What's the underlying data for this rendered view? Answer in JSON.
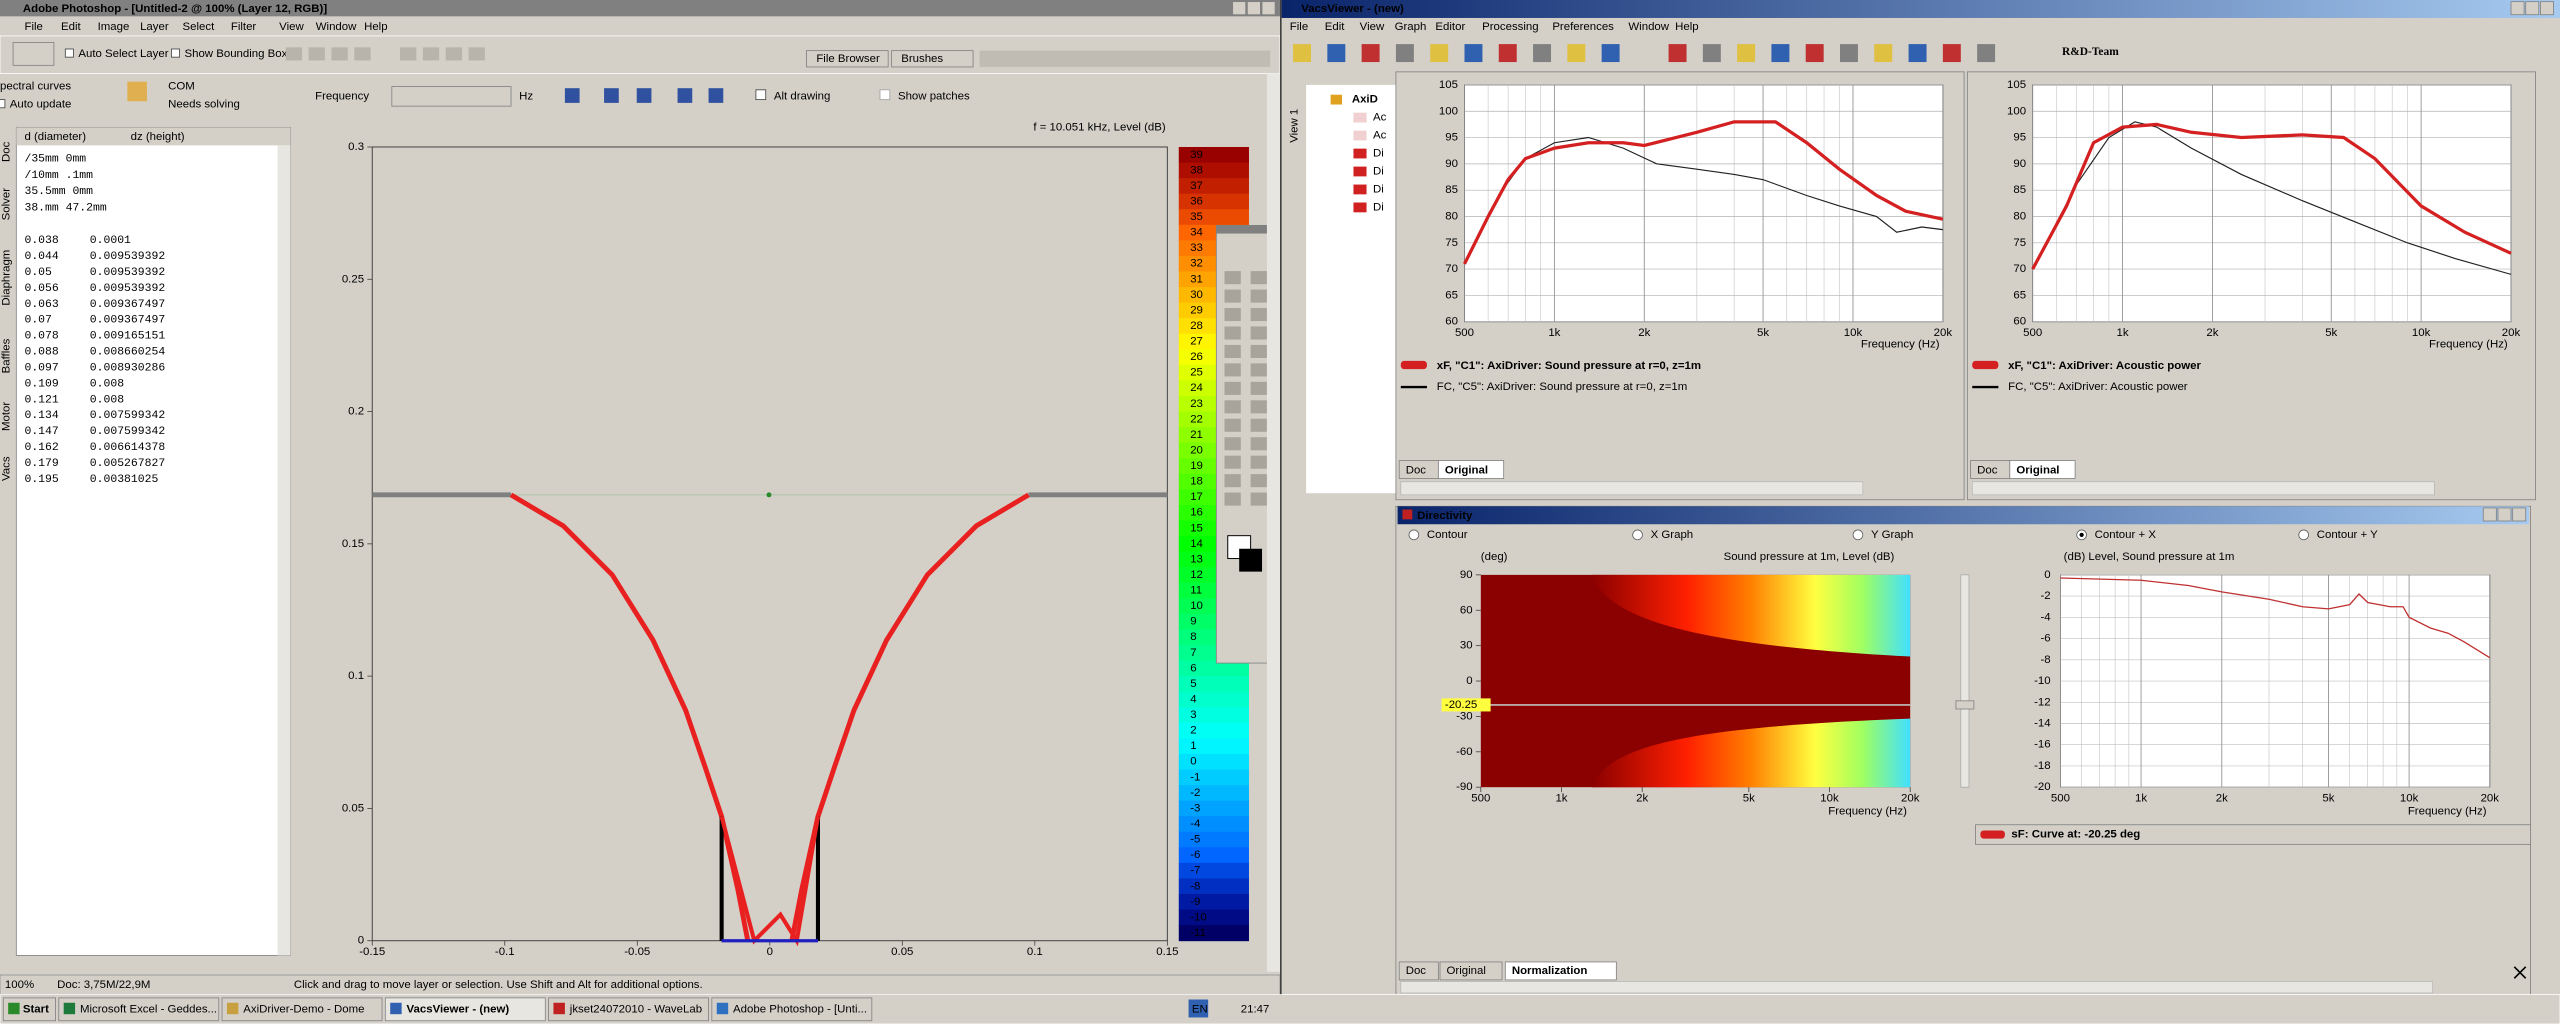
{
  "photoshop": {
    "title": "Adobe Photoshop - [Untitled-2 @ 100% (Layer 12, RGB)]",
    "menu": [
      "File",
      "Edit",
      "Image",
      "Layer",
      "Select",
      "Filter",
      "View",
      "Window",
      "Help"
    ],
    "options": [
      "Auto Select Layer",
      "Show Bounding Box"
    ],
    "tabs": [
      "File Browser",
      "Brushes"
    ],
    "status": {
      "zoom": "100%",
      "doc": "Doc: 3,75M/22,9M",
      "hint": "Click and drag to move layer or selection. Use Shift and Alt for additional options."
    }
  },
  "axidriver": {
    "toolbar": {
      "spectral": "pectral curves",
      "auto": "Auto update",
      "com": "COM",
      "needs": "Needs solving",
      "frequency": "Frequency",
      "hz": "Hz",
      "alt": "Alt drawing",
      "patches": "Show patches"
    },
    "side_tabs": [
      "Doc",
      "Solver",
      "Diaphragm",
      "Baffles",
      "Motor",
      "Vacs"
    ],
    "table_header": [
      "d (diameter)",
      "dz (height)"
    ],
    "dims": [
      "/35mm 0mm",
      "/10mm .1mm",
      "35.5mm 0mm",
      "38.mm 47.2mm"
    ],
    "rows": [
      [
        "0.038",
        "0.0001"
      ],
      [
        "0.044",
        "0.009539392"
      ],
      [
        "0.05",
        "0.009539392"
      ],
      [
        "0.056",
        "0.009539392"
      ],
      [
        "0.063",
        "0.009367497"
      ],
      [
        "0.07",
        "0.009367497"
      ],
      [
        "0.078",
        "0.009165151"
      ],
      [
        "0.088",
        "0.008660254"
      ],
      [
        "0.097",
        "0.008930286"
      ],
      [
        "0.109",
        "0.008"
      ],
      [
        "0.121",
        "0.008"
      ],
      [
        "0.134",
        "0.007599342"
      ],
      [
        "0.147",
        "0.007599342"
      ],
      [
        "0.162",
        "0.006614378"
      ],
      [
        "0.179",
        "0.005267827"
      ],
      [
        "0.195",
        "0.00381025"
      ]
    ],
    "plot": {
      "caption": "f = 10.051 kHz, Level  (dB)",
      "xlim": [
        -0.15,
        0.15
      ],
      "ylim": [
        0,
        0.3
      ],
      "xticks": [
        -0.15,
        -0.1,
        -0.05,
        0,
        0.05,
        0.1,
        0.15
      ],
      "yticks": [
        0,
        0.05,
        0.1,
        0.15,
        0.2,
        0.25,
        0.3
      ],
      "scale": [
        39,
        38,
        37,
        36,
        35,
        34,
        33,
        32,
        31,
        30,
        29,
        28,
        27,
        26,
        25,
        24,
        23,
        22,
        21,
        20,
        19,
        18,
        17,
        16,
        15,
        14,
        13,
        12,
        11,
        10,
        9,
        8,
        7,
        6,
        5,
        4,
        3,
        2,
        1,
        0,
        -1,
        -2,
        -3,
        -4,
        -5,
        -6,
        -7,
        -8,
        -9,
        -10,
        -11
      ]
    }
  },
  "vacs": {
    "title": "VacsViewer - (new)",
    "menu": [
      "File",
      "Edit",
      "View",
      "Graph",
      "Editor",
      "Processing",
      "Preferences",
      "Window",
      "Help"
    ],
    "brand": "R&D-Team",
    "view_tab": "View 1",
    "tree": {
      "root": "AxiD",
      "items": [
        "Ac",
        "Ac",
        "Di",
        "Di",
        "Di",
        "Di"
      ]
    },
    "graphs": [
      {
        "xlim": [
          500,
          20000
        ],
        "ylim": [
          60,
          105
        ],
        "xticks": [
          {
            "value": 500,
            "label": "500"
          },
          {
            "value": 1000,
            "label": "1k"
          },
          {
            "value": 2000,
            "label": "2k"
          },
          {
            "value": 5000,
            "label": "5k"
          },
          {
            "value": 10000,
            "label": "10k"
          },
          {
            "value": 20000,
            "label": "20k"
          }
        ],
        "yticks": [
          60,
          65,
          70,
          75,
          80,
          85,
          90,
          95,
          100,
          105
        ],
        "xlabel": "Frequency  (Hz)",
        "legend": [
          "xF, \"C1\": AxiDriver: Sound pressure at r=0, z=1m",
          "FC, \"C5\": AxiDriver: Sound pressure at r=0, z=1m"
        ],
        "tabs": [
          "Doc",
          "Original"
        ]
      },
      {
        "xlim": [
          500,
          20000
        ],
        "ylim": [
          60,
          105
        ],
        "xticks": [
          {
            "value": 500,
            "label": "500"
          },
          {
            "value": 1000,
            "label": "1k"
          },
          {
            "value": 2000,
            "label": "2k"
          },
          {
            "value": 5000,
            "label": "5k"
          },
          {
            "value": 10000,
            "label": "10k"
          },
          {
            "value": 20000,
            "label": "20k"
          }
        ],
        "yticks": [
          60,
          65,
          70,
          75,
          80,
          85,
          90,
          95,
          100,
          105
        ],
        "xlabel": "Frequency  (Hz)",
        "legend": [
          "xF, \"C1\": AxiDriver: Acoustic power",
          "FC, \"C5\": AxiDriver: Acoustic power"
        ],
        "tabs": [
          "Doc",
          "Original"
        ]
      }
    ],
    "directivity": {
      "title": "Directivity",
      "radios": [
        "Contour",
        "X Graph",
        "Y Graph",
        "Contour + X",
        "Contour + Y"
      ],
      "contour": {
        "ylabel": "(deg)",
        "title": "Sound pressure at 1m, Level  (dB)",
        "xlim": [
          500,
          20000
        ],
        "ylim": [
          -90,
          90
        ],
        "yticks": [
          90,
          60,
          30,
          0,
          -30,
          -60,
          -90
        ],
        "xticks": [
          {
            "value": 500,
            "label": "500"
          },
          {
            "value": 1000,
            "label": "1k"
          },
          {
            "value": 2000,
            "label": "2k"
          },
          {
            "value": 5000,
            "label": "5k"
          },
          {
            "value": 10000,
            "label": "10k"
          },
          {
            "value": 20000,
            "label": "20k"
          }
        ],
        "xlabel": "Frequency  (Hz)",
        "marker": -20.25
      },
      "level": {
        "title": "(dB)  Level, Sound pressure at 1m",
        "xlim": [
          500,
          20000
        ],
        "ylim": [
          -20,
          0
        ],
        "yticks": [
          0,
          -2,
          -4,
          -6,
          -8,
          -10,
          -12,
          -14,
          -16,
          -18,
          -20
        ],
        "xticks": [
          {
            "value": 500,
            "label": "500"
          },
          {
            "value": 1000,
            "label": "1k"
          },
          {
            "value": 2000,
            "label": "2k"
          },
          {
            "value": 5000,
            "label": "5k"
          },
          {
            "value": 10000,
            "label": "10k"
          },
          {
            "value": 20000,
            "label": "20k"
          }
        ],
        "xlabel": "Frequency  (Hz)"
      },
      "legend": "sF: Curve at: -20.25 deg",
      "tabs": [
        "Doc",
        "Original",
        "Normalization"
      ]
    }
  },
  "taskbar": {
    "start": "Start",
    "items": [
      "Microsoft Excel - Geddes...",
      "AxiDriver-Demo - Dome",
      "VacsViewer - (new)",
      "jkset24072010 - WaveLab",
      "Adobe Photoshop - [Unti..."
    ],
    "lang": "EN",
    "clock": "21:47"
  }
}
